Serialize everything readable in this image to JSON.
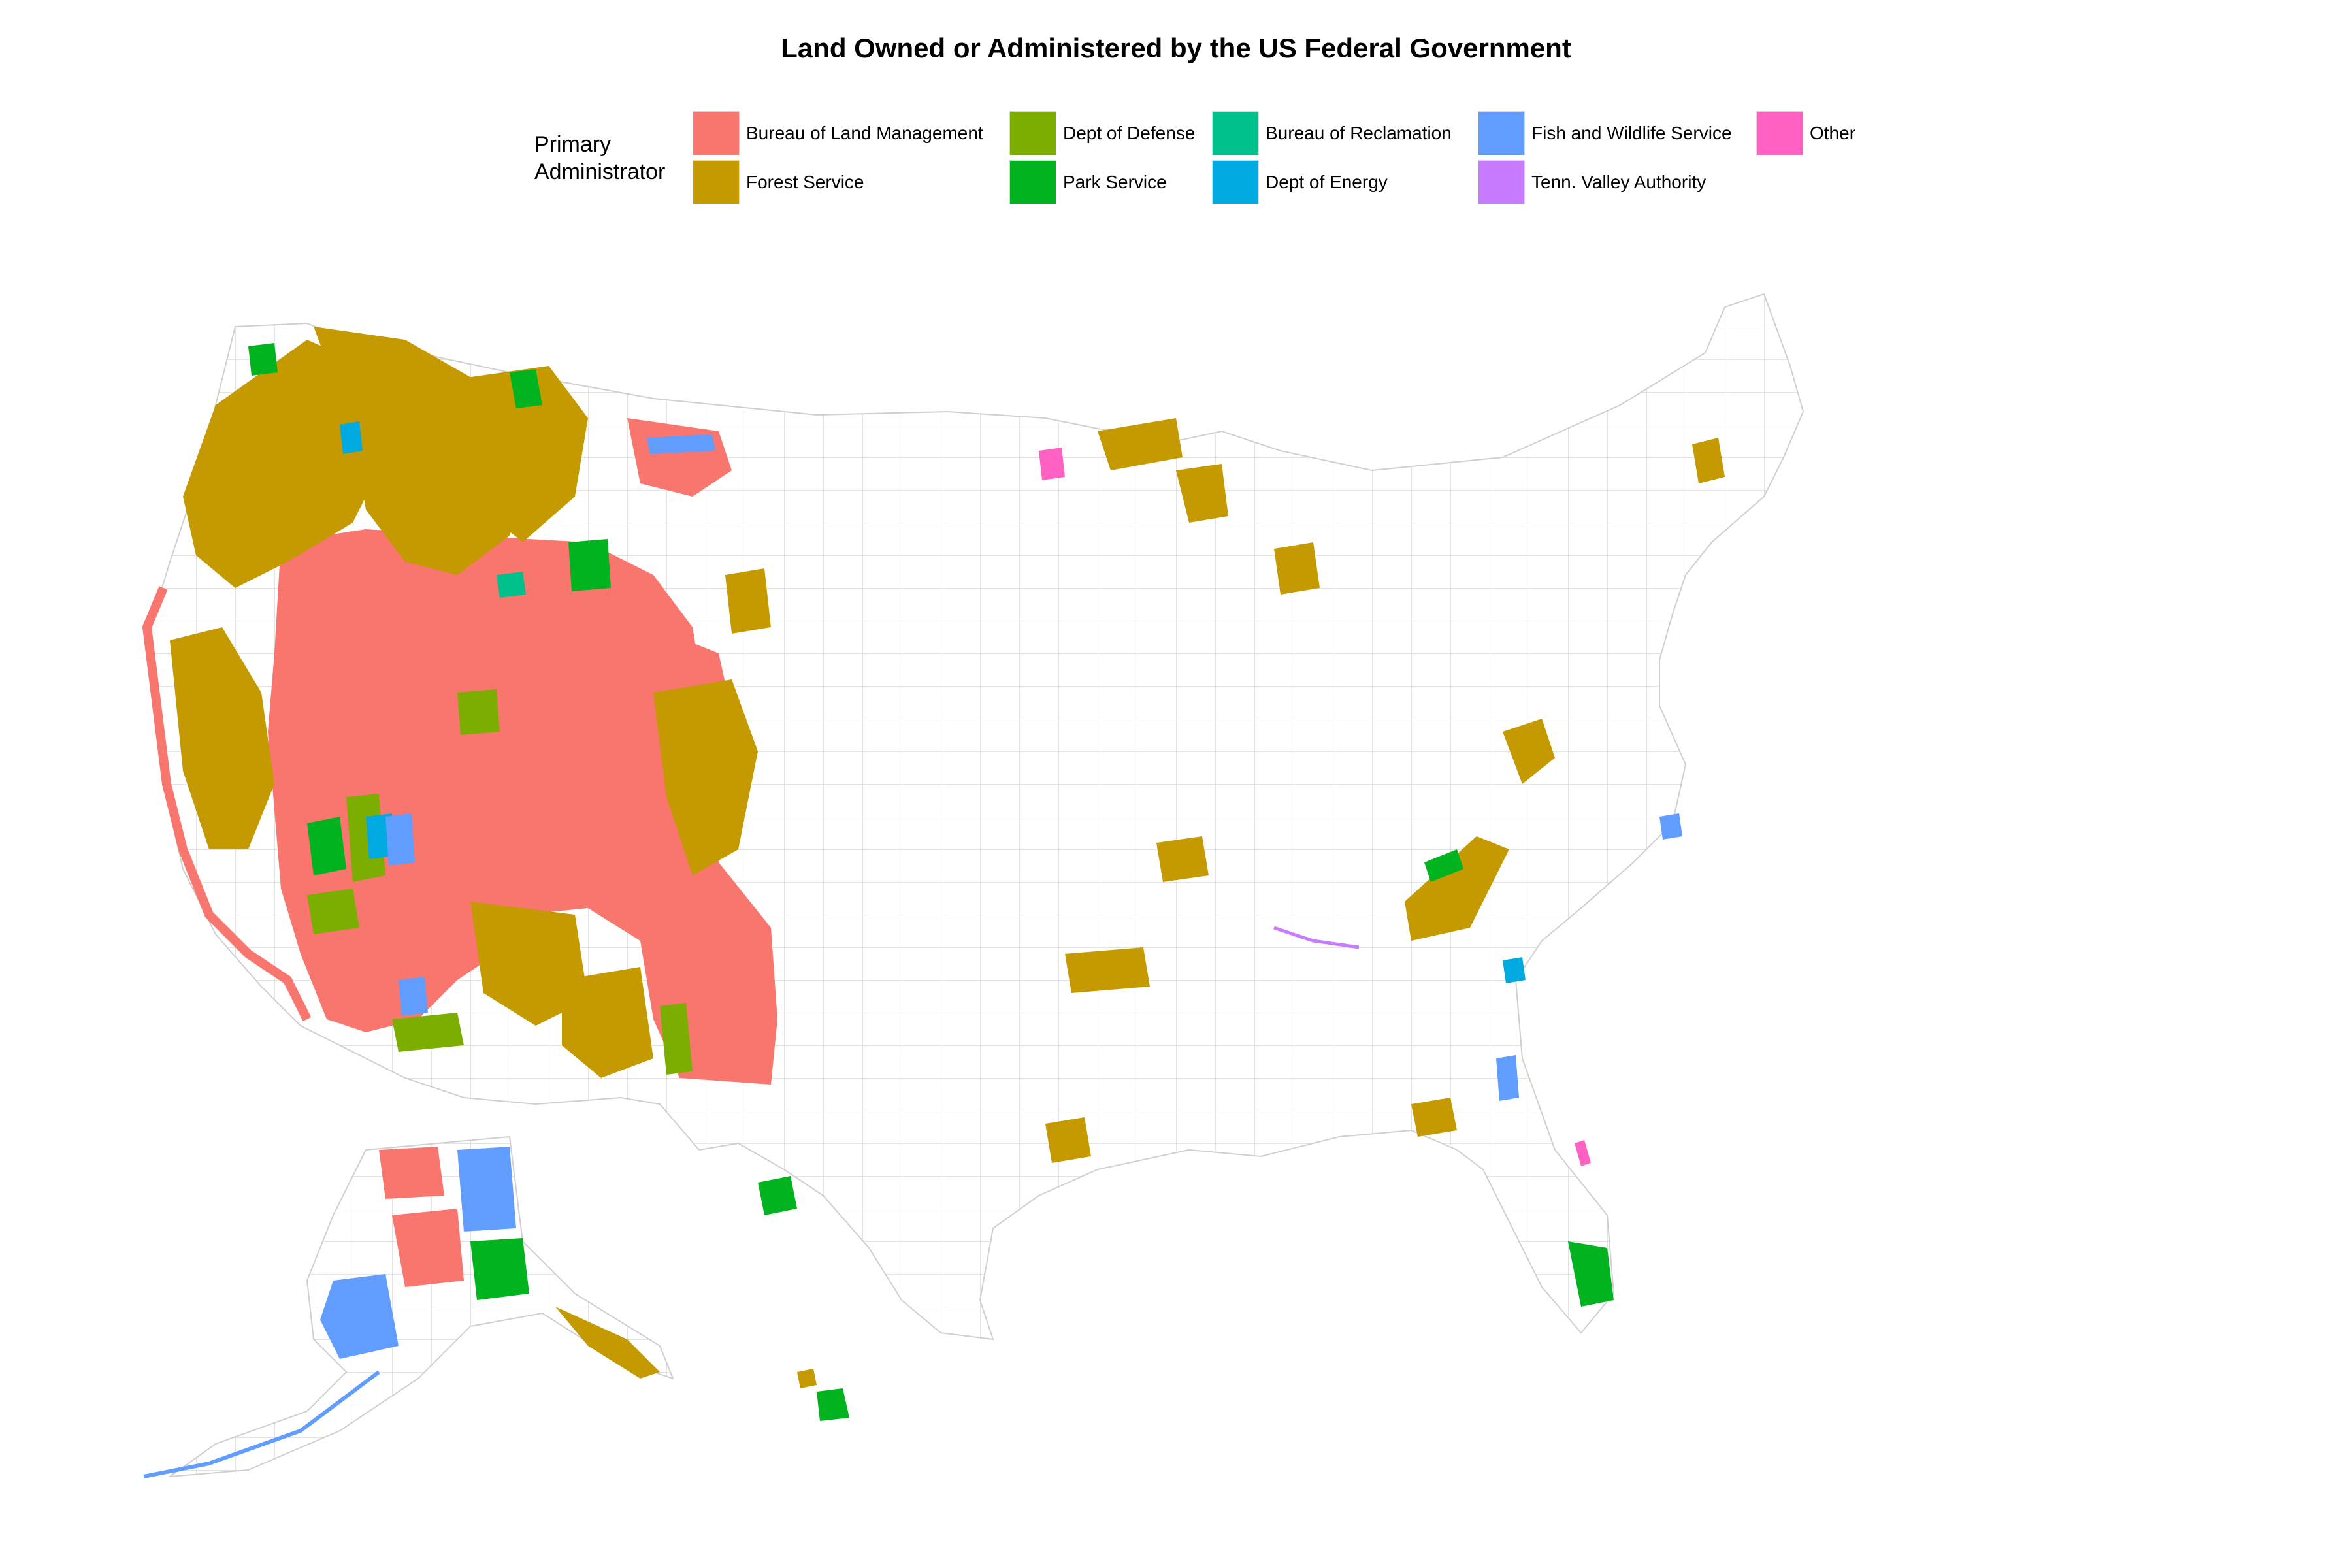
{
  "title": "Land Owned or Administered by the US Federal Government",
  "legend": {
    "title_line1": "Primary",
    "title_line2": "Administrator",
    "items": [
      {
        "label": "Bureau of Land Management",
        "color": "#F8766D"
      },
      {
        "label": "Forest Service",
        "color": "#C49A00"
      },
      {
        "label": "Dept of Defense",
        "color": "#7CAE00"
      },
      {
        "label": "Park Service",
        "color": "#00B31F"
      },
      {
        "label": "Bureau of Reclamation",
        "color": "#00C08B"
      },
      {
        "label": "Dept of Energy",
        "color": "#00A9E0"
      },
      {
        "label": "Fish and Wildlife Service",
        "color": "#619CFF"
      },
      {
        "label": "Tenn. Valley Authority",
        "color": "#C77CFF"
      },
      {
        "label": "Other",
        "color": "#FF61C3"
      }
    ]
  },
  "map": {
    "background": "#ffffff",
    "county_line_color": "#d8d8d8"
  }
}
